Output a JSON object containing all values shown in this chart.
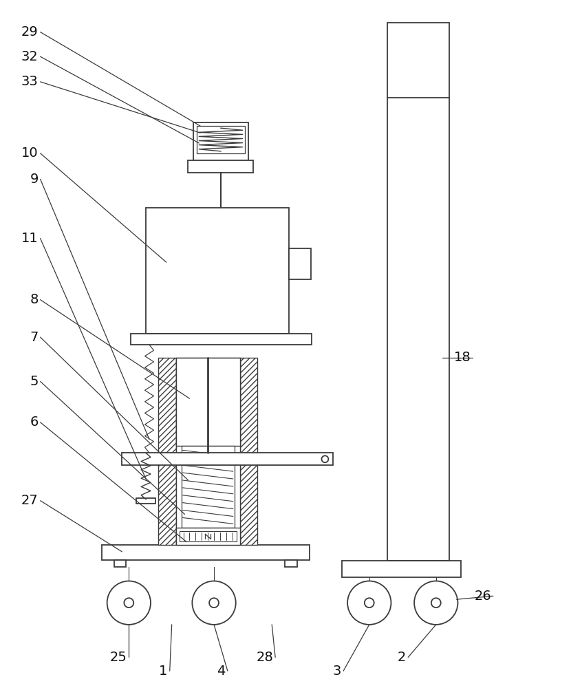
{
  "bg_color": "#ffffff",
  "line_color": "#3a3a3a",
  "lw": 1.3
}
